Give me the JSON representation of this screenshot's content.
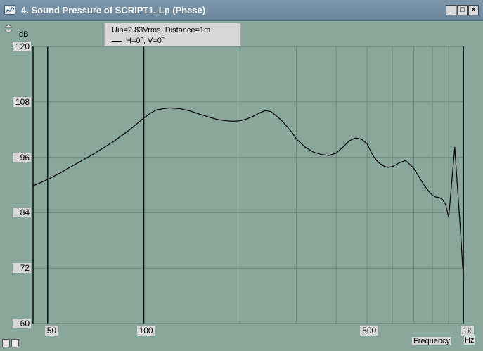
{
  "window": {
    "title": "4. Sound Pressure of SCRIPT1, Lp (Phase)",
    "minimize_label": "_",
    "maximize_label": "□",
    "close_label": "×",
    "icon": "graph-window-icon"
  },
  "legend": {
    "condition": "Uin=2.83Vrms, Distance=1m",
    "series_label": "H=0°, V=0°"
  },
  "chart_data": {
    "type": "line",
    "ylabel": "dB",
    "xlabel": "Frequency",
    "x_unit": "Hz",
    "x_scale": "log",
    "xlim": [
      45,
      1000
    ],
    "ylim": [
      60,
      120
    ],
    "y_ticks": [
      120,
      108,
      96,
      84,
      72,
      60
    ],
    "y_tick_labels": [
      "120",
      "108",
      "96",
      "84",
      "72",
      "60"
    ],
    "x_tick_labels": [
      {
        "value": 50,
        "label": "50"
      },
      {
        "value": 100,
        "label": "100"
      },
      {
        "value": 500,
        "label": "500"
      },
      {
        "value": 1000,
        "label": "1k"
      }
    ],
    "major_x_lines": [
      50,
      100,
      1000
    ],
    "minor_x_lines": [
      200,
      300,
      400,
      500,
      600,
      700,
      800,
      900
    ],
    "grid": true,
    "series": [
      {
        "name": "H=0°, V=0°",
        "color": "#000000",
        "x": [
          45,
          50,
          55,
          60,
          70,
          80,
          90,
          100,
          105,
          110,
          120,
          130,
          140,
          150,
          160,
          170,
          180,
          190,
          200,
          210,
          220,
          230,
          240,
          250,
          270,
          290,
          300,
          320,
          340,
          360,
          380,
          400,
          420,
          440,
          460,
          480,
          500,
          520,
          540,
          560,
          580,
          600,
          630,
          660,
          700,
          750,
          780,
          800,
          820,
          840,
          860,
          880,
          900,
          940,
          980,
          1000
        ],
        "y": [
          89.8,
          91.2,
          92.7,
          94.2,
          96.8,
          99.3,
          101.9,
          104.5,
          105.6,
          106.3,
          106.7,
          106.5,
          106.0,
          105.3,
          104.7,
          104.2,
          103.9,
          103.8,
          103.9,
          104.3,
          104.9,
          105.6,
          106.1,
          105.9,
          104.0,
          101.5,
          100.0,
          98.2,
          97.1,
          96.6,
          96.4,
          96.9,
          98.2,
          99.6,
          100.2,
          99.9,
          98.9,
          96.5,
          95.0,
          94.2,
          93.8,
          94.0,
          94.8,
          95.3,
          93.6,
          90.2,
          88.6,
          87.8,
          87.4,
          87.3,
          86.9,
          85.8,
          83.0,
          98.2,
          80.0,
          70.0
        ]
      }
    ]
  }
}
